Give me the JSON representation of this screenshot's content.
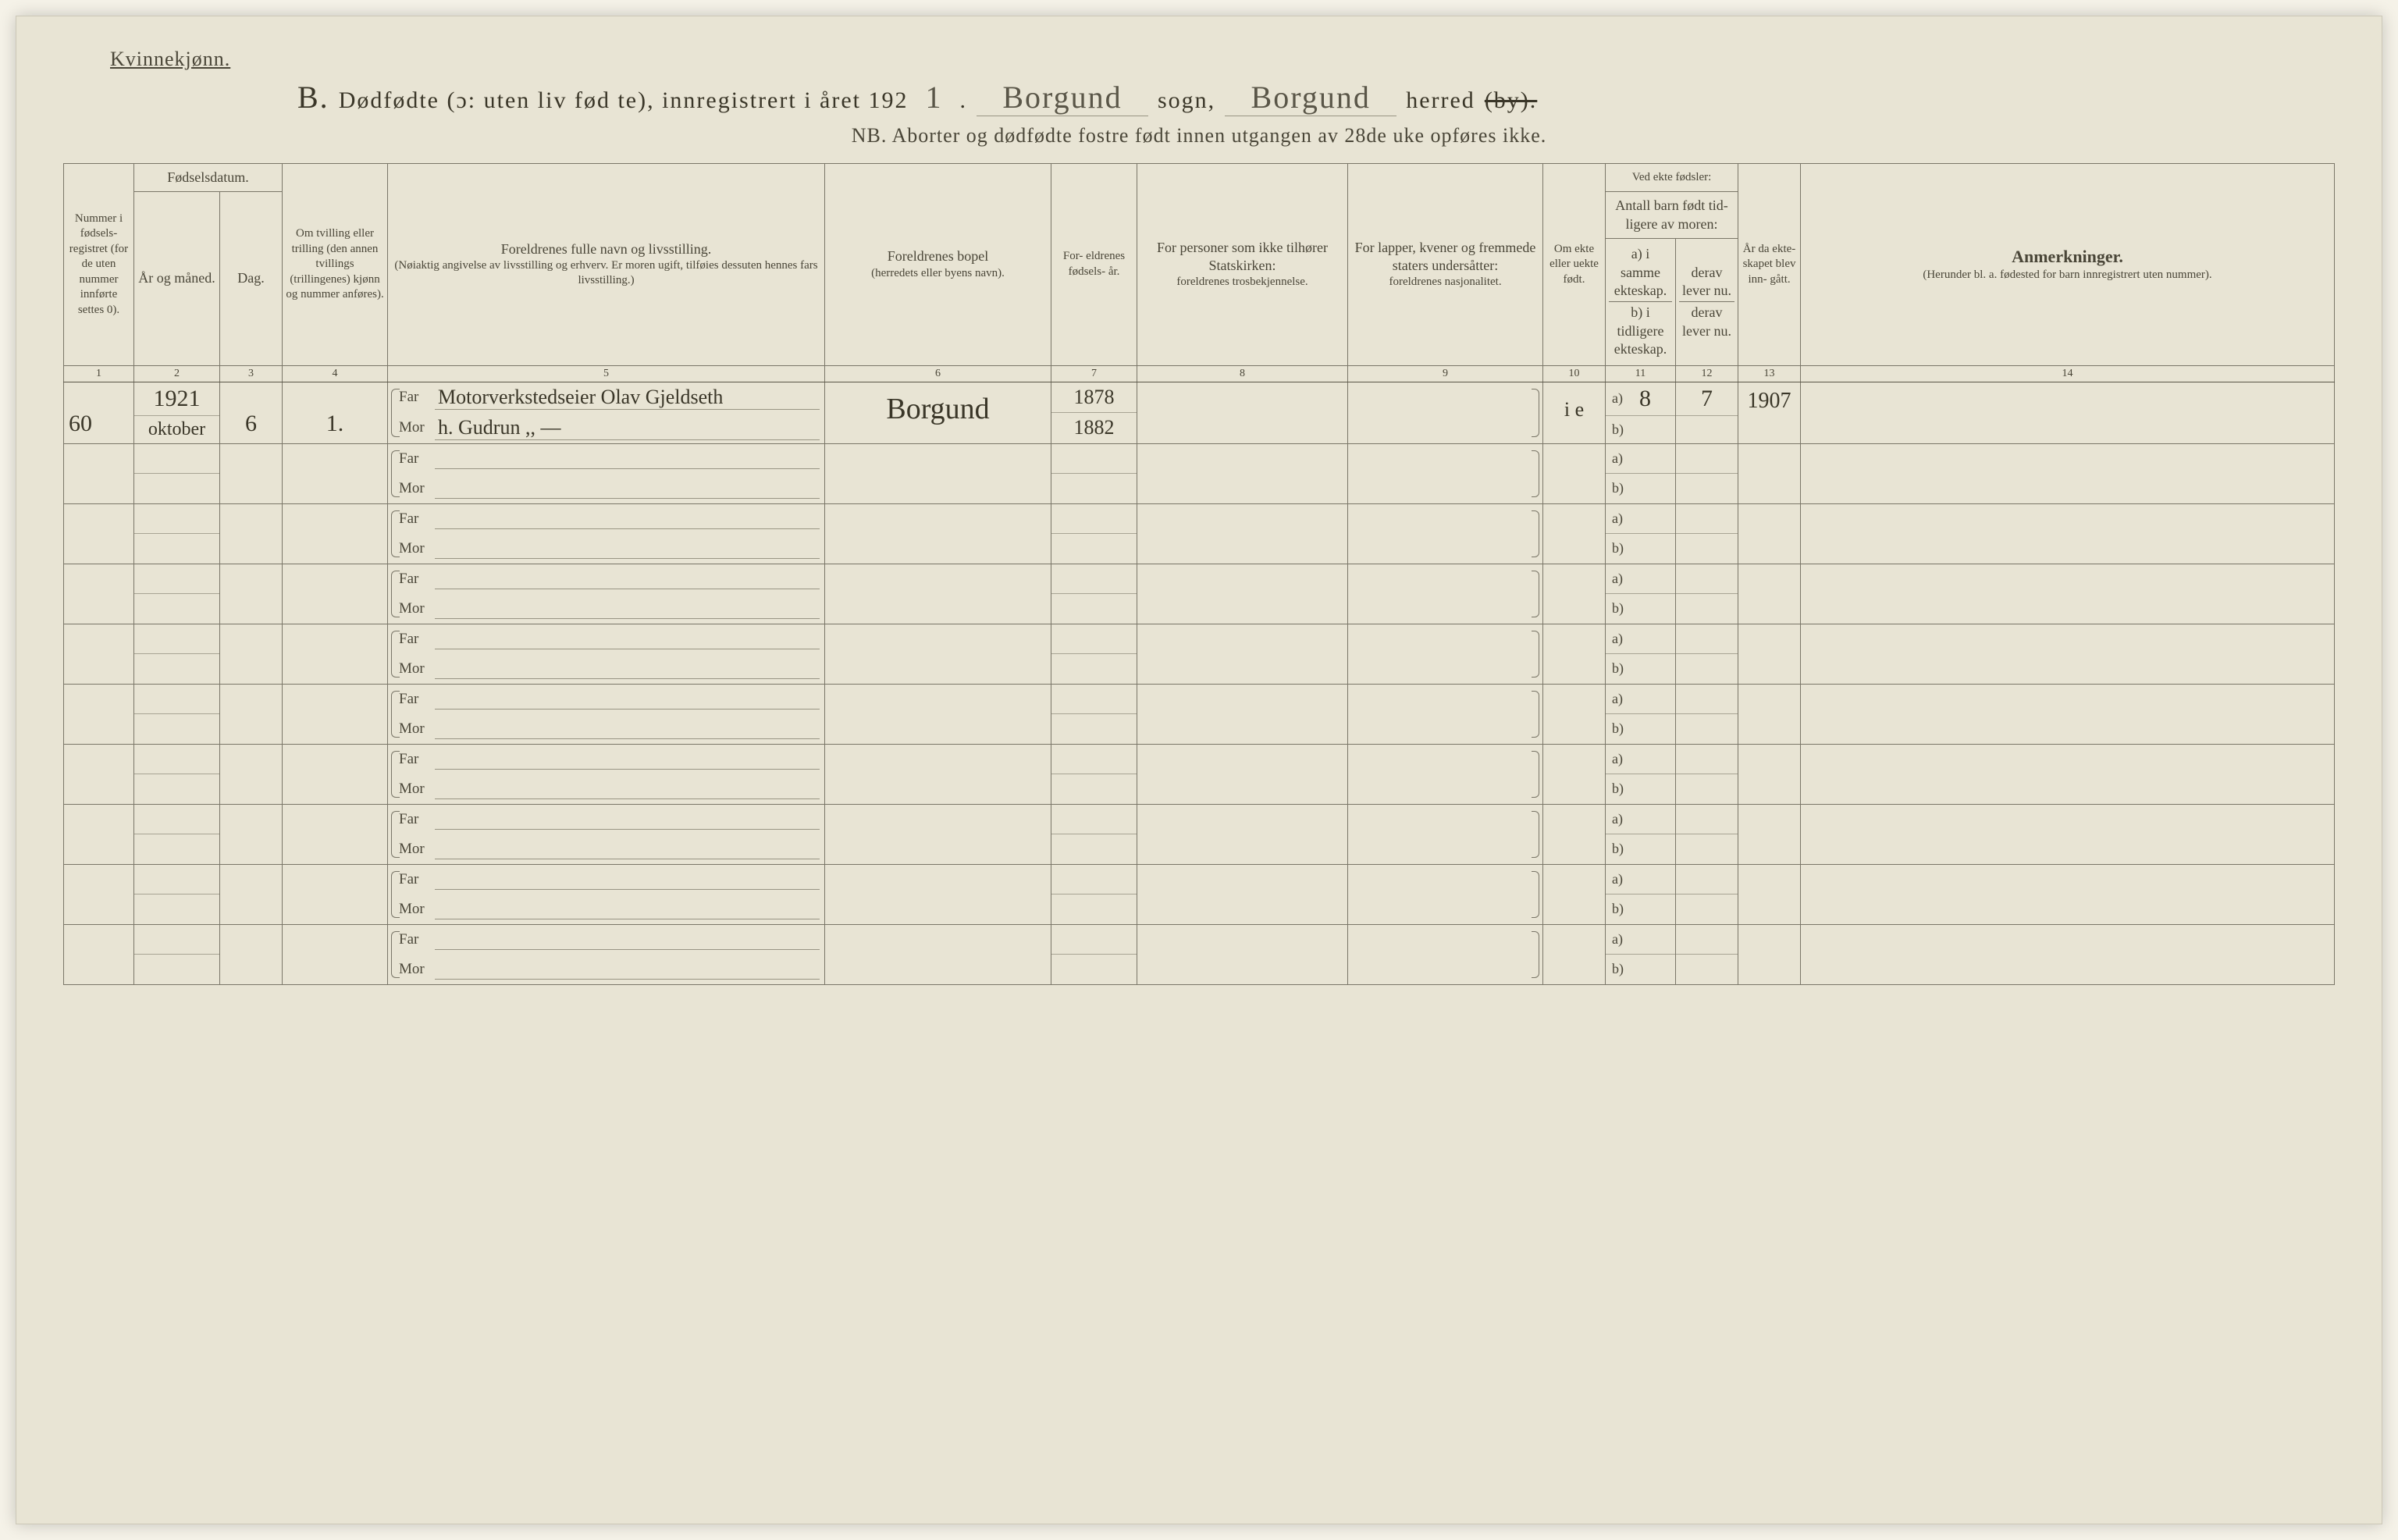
{
  "page": {
    "bg_color": "#e8e4d4",
    "border_color": "#7a7668",
    "text_color": "#4a4638",
    "handwriting_color": "#3a3628"
  },
  "header": {
    "gender": "Kvinnekjønn.",
    "section_letter": "B.",
    "title_part1": "Dødfødte (ɔ: uten liv fød te), innregistrert i året 192",
    "year_hand": "1",
    "year_suffix": ".",
    "sogn_value": "Borgund",
    "sogn_label": "sogn,",
    "herred_value": "Borgund",
    "herred_label": "herred",
    "by_strike": "(by).",
    "subtitle_nb": "NB.",
    "subtitle_text": "Aborter og dødfødte fostre født innen utgangen av 28de uke opføres ikke."
  },
  "columns": {
    "c1": "Nummer i fødsels- registret (for de uten nummer innførte settes 0).",
    "c23_group": "Fødselsdatum.",
    "c2": "År og måned.",
    "c3": "Dag.",
    "c4": "Om tvilling eller trilling (den annen tvillings (trillingenes) kjønn og nummer anføres).",
    "c5": "Foreldrenes fulle navn og livsstilling.",
    "c5_sub": "(Nøiaktig angivelse av livsstilling og erhverv. Er moren ugift, tilføies dessuten hennes fars livsstilling.)",
    "c6": "Foreldrenes bopel",
    "c6_sub": "(herredets eller byens navn).",
    "c7": "For- eldrenes fødsels- år.",
    "c8": "For personer som ikke tilhører Statskirken:",
    "c8_sub": "foreldrenes trosbekjennelse.",
    "c9": "For lapper, kvener og fremmede staters undersåtter:",
    "c9_sub": "foreldrenes nasjonalitet.",
    "c10": "Om ekte eller uekte født.",
    "c1112_group": "Ved ekte fødsler:",
    "c1112_group2": "Antall barn født tid- ligere av moren:",
    "c11a": "a) i samme ekteskap.",
    "c11b": "b) i tidligere ekteskap.",
    "c12a": "derav lever nu.",
    "c12b": "derav lever nu.",
    "c13": "År da ekte- skapet blev inn- gått.",
    "c14": "Anmerkninger.",
    "c14_sub": "(Herunder bl. a. fødested for barn innregistrert uten nummer)."
  },
  "colnums": [
    "1",
    "2",
    "3",
    "4",
    "5",
    "6",
    "7",
    "8",
    "9",
    "10",
    "11",
    "12",
    "13",
    "14"
  ],
  "parent_labels": {
    "far": "Far",
    "mor": "Mor"
  },
  "ab_labels": {
    "a": "a)",
    "b": "b)"
  },
  "rows": [
    {
      "num": "60",
      "year": "1921",
      "month": "oktober",
      "day": "6",
      "twin": "1.",
      "far": "Motorverkstedseier Olav Gjeldseth",
      "mor": "h. Gudrun        ,, —",
      "bopel": "Borgund",
      "far_year": "1878",
      "mor_year": "1882",
      "ekte": "i e",
      "c11a": "8",
      "c12a": "7",
      "c13": "1907"
    },
    {},
    {},
    {},
    {},
    {},
    {},
    {},
    {},
    {}
  ]
}
